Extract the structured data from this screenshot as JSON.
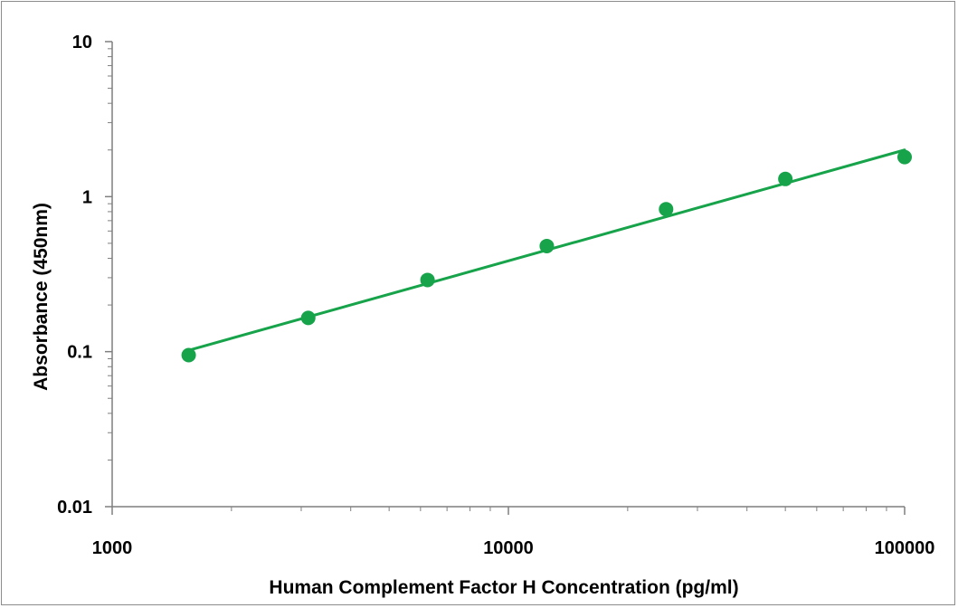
{
  "chart_data": {
    "type": "scatter",
    "title": "",
    "xlabel": "Human Complement Factor H Concentration (pg/ml)",
    "ylabel": "Absorbance (450nm)",
    "xscale": "log",
    "yscale": "log",
    "xlim": [
      1000,
      100000
    ],
    "ylim": [
      0.01,
      10
    ],
    "xticks": [
      1000,
      10000,
      100000
    ],
    "xtick_labels": [
      "1000",
      "10000",
      "100000"
    ],
    "yticks": [
      0.01,
      0.1,
      1,
      10
    ],
    "ytick_labels": [
      "0.01",
      "0.1",
      "1",
      "10"
    ],
    "grid": false,
    "legend": "none",
    "colors": {
      "series": "#16a34a",
      "axis": "#7f7f7f",
      "frame": "#8c8c8c"
    },
    "series": [
      {
        "x": [
          1560,
          3125,
          6250,
          12500,
          25000,
          50000,
          100000
        ],
        "y": [
          0.095,
          0.165,
          0.29,
          0.48,
          0.83,
          1.3,
          1.8
        ],
        "marker": "circle",
        "fit_line": {
          "type": "linear-on-log-log",
          "x": [
            1560,
            100000
          ],
          "y": [
            0.102,
            2.0
          ]
        }
      }
    ]
  }
}
